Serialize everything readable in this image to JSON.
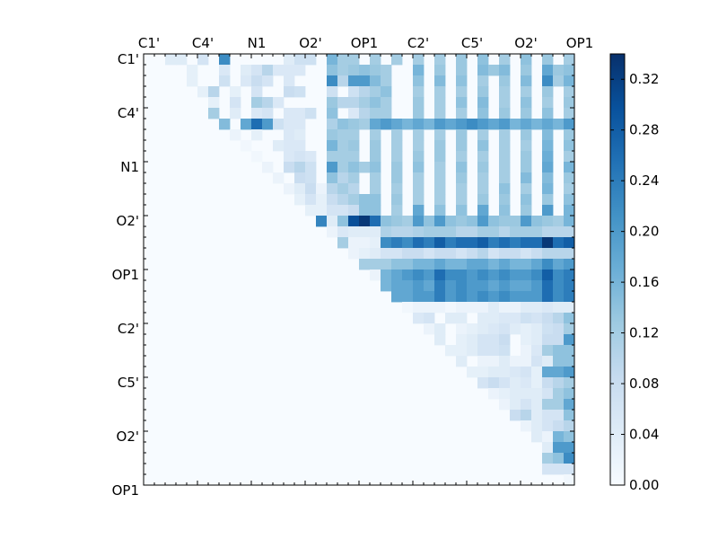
{
  "chart_data": {
    "type": "heatmap",
    "title": "",
    "colormap": "Blues",
    "colors": {
      "low": "#f7fbff",
      "high": "#08306b"
    },
    "n": 40,
    "x_tick_labels": [
      "C1'",
      "C4'",
      "N1",
      "O2'",
      "OP1",
      "C2'",
      "C5'",
      "O2'",
      "OP1"
    ],
    "y_tick_labels": [
      "C1'",
      "C4'",
      "N1",
      "O2'",
      "OP1",
      "C2'",
      "C5'",
      "O2'",
      "OP1"
    ],
    "tick_label_step": 5,
    "matrix_shape": "upper-triangular",
    "colorbar": {
      "min": 0.0,
      "max": 0.34,
      "ticks": [
        0.0,
        0.04,
        0.08,
        0.12,
        0.16,
        0.2,
        0.24,
        0.28,
        0.32
      ],
      "tick_labels": [
        "0.00",
        "0.04",
        "0.08",
        "0.12",
        "0.16",
        "0.20",
        "0.24",
        "0.28",
        "0.32"
      ]
    },
    "rows": [
      {
        "row": 0,
        "values": {
          "2": 0.04,
          "3": 0.04,
          "5": 0.06,
          "7": 0.22,
          "13": 0.04,
          "14": 0.07,
          "15": 0.07,
          "17": 0.16,
          "18": 0.12,
          "19": 0.12,
          "21": 0.12,
          "23": 0.12,
          "25": 0.12,
          "27": 0.12,
          "29": 0.13,
          "31": 0.14,
          "33": 0.12,
          "35": 0.14,
          "37": 0.13,
          "39": 0.12
        }
      },
      {
        "row": 1,
        "values": {
          "4": 0.03,
          "7": 0.05,
          "9": 0.04,
          "10": 0.06,
          "11": 0.1,
          "12": 0.05,
          "13": 0.05,
          "14": 0.05,
          "17": 0.14,
          "18": 0.12,
          "19": 0.13,
          "20": 0.14,
          "21": 0.13,
          "22": 0.12,
          "25": 0.16,
          "27": 0.13,
          "29": 0.13,
          "31": 0.15,
          "32": 0.13,
          "33": 0.15,
          "35": 0.13,
          "37": 0.18,
          "38": 0.13,
          "39": 0.14
        }
      },
      {
        "row": 2,
        "values": {
          "4": 0.03,
          "7": 0.07,
          "9": 0.05,
          "10": 0.08,
          "11": 0.06,
          "13": 0.05,
          "17": 0.22,
          "18": 0.1,
          "19": 0.2,
          "20": 0.2,
          "21": 0.15,
          "22": 0.12,
          "25": 0.14,
          "27": 0.15,
          "29": 0.14,
          "31": 0.12,
          "33": 0.13,
          "35": 0.15,
          "37": 0.22,
          "38": 0.12,
          "39": 0.16
        }
      },
      {
        "row": 3,
        "values": {
          "5": 0.03,
          "6": 0.1,
          "8": 0.03,
          "10": 0.06,
          "13": 0.08,
          "14": 0.07,
          "17": 0.07,
          "19": 0.07,
          "20": 0.1,
          "21": 0.12,
          "22": 0.14,
          "25": 0.12,
          "27": 0.12,
          "29": 0.12,
          "31": 0.13,
          "33": 0.12,
          "35": 0.12,
          "37": 0.13,
          "39": 0.12
        }
      },
      {
        "row": 4,
        "values": {
          "6": 0.03,
          "8": 0.06,
          "10": 0.12,
          "11": 0.1,
          "12": 0.05,
          "17": 0.13,
          "18": 0.1,
          "19": 0.1,
          "20": 0.12,
          "21": 0.14,
          "22": 0.12,
          "25": 0.13,
          "27": 0.12,
          "29": 0.14,
          "31": 0.15,
          "33": 0.12,
          "35": 0.14,
          "37": 0.12,
          "39": 0.13
        }
      },
      {
        "row": 5,
        "values": {
          "6": 0.12,
          "8": 0.04,
          "10": 0.05,
          "11": 0.06,
          "13": 0.05,
          "14": 0.05,
          "15": 0.07,
          "17": 0.14,
          "19": 0.05,
          "20": 0.1,
          "21": 0.12,
          "22": 0.12,
          "25": 0.13,
          "27": 0.12,
          "29": 0.12,
          "31": 0.14,
          "33": 0.13,
          "35": 0.13,
          "37": 0.14,
          "39": 0.12
        }
      },
      {
        "row": 6,
        "values": {
          "7": 0.15,
          "9": 0.18,
          "10": 0.26,
          "11": 0.2,
          "12": 0.07,
          "13": 0.05,
          "14": 0.05,
          "17": 0.11,
          "18": 0.14,
          "19": 0.13,
          "20": 0.12,
          "21": 0.18,
          "22": 0.2,
          "23": 0.18,
          "24": 0.16,
          "25": 0.18,
          "26": 0.16,
          "27": 0.2,
          "28": 0.18,
          "29": 0.2,
          "30": 0.22,
          "31": 0.2,
          "32": 0.18,
          "33": 0.2,
          "34": 0.16,
          "35": 0.18,
          "36": 0.16,
          "37": 0.18,
          "38": 0.16,
          "39": 0.2
        }
      },
      {
        "row": 7,
        "values": {
          "8": 0.02,
          "10": 0.03,
          "13": 0.05,
          "14": 0.04,
          "17": 0.13,
          "18": 0.12,
          "19": 0.12,
          "21": 0.12,
          "23": 0.12,
          "25": 0.12,
          "27": 0.12,
          "29": 0.13,
          "31": 0.12,
          "33": 0.12,
          "35": 0.13,
          "37": 0.15,
          "39": 0.13
        }
      },
      {
        "row": 8,
        "values": {
          "9": 0.01,
          "12": 0.04,
          "13": 0.05,
          "14": 0.05,
          "17": 0.16,
          "18": 0.12,
          "19": 0.13,
          "21": 0.13,
          "23": 0.12,
          "25": 0.12,
          "27": 0.13,
          "29": 0.13,
          "31": 0.14,
          "33": 0.12,
          "35": 0.12,
          "37": 0.16,
          "39": 0.14
        }
      },
      {
        "row": 9,
        "values": {
          "10": 0.01,
          "13": 0.05,
          "14": 0.06,
          "15": 0.05,
          "17": 0.12,
          "18": 0.12,
          "19": 0.12,
          "21": 0.13,
          "23": 0.12,
          "25": 0.13,
          "27": 0.13,
          "29": 0.12,
          "31": 0.12,
          "33": 0.12,
          "35": 0.13,
          "37": 0.17,
          "39": 0.12
        }
      },
      {
        "row": 10,
        "values": {
          "11": 0.02,
          "13": 0.08,
          "14": 0.1,
          "15": 0.07,
          "17": 0.2,
          "18": 0.12,
          "19": 0.14,
          "20": 0.12,
          "21": 0.14,
          "23": 0.13,
          "25": 0.14,
          "27": 0.12,
          "29": 0.14,
          "31": 0.13,
          "33": 0.12,
          "35": 0.13,
          "37": 0.18,
          "39": 0.16
        }
      },
      {
        "row": 11,
        "values": {
          "12": 0.02,
          "14": 0.08,
          "15": 0.07,
          "17": 0.14,
          "18": 0.1,
          "19": 0.12,
          "21": 0.12,
          "23": 0.13,
          "25": 0.12,
          "27": 0.12,
          "29": 0.13,
          "31": 0.12,
          "33": 0.12,
          "35": 0.15,
          "37": 0.15,
          "39": 0.13
        }
      },
      {
        "row": 12,
        "values": {
          "13": 0.02,
          "14": 0.04,
          "15": 0.08,
          "16": 0.02,
          "17": 0.1,
          "18": 0.12,
          "19": 0.1,
          "21": 0.12,
          "23": 0.12,
          "25": 0.12,
          "27": 0.12,
          "29": 0.12,
          "31": 0.12,
          "33": 0.14,
          "35": 0.12,
          "37": 0.16,
          "39": 0.12
        }
      },
      {
        "row": 13,
        "values": {
          "14": 0.03,
          "15": 0.06,
          "16": 0.03,
          "17": 0.08,
          "18": 0.1,
          "19": 0.12,
          "20": 0.14,
          "21": 0.14,
          "23": 0.13,
          "25": 0.12,
          "27": 0.12,
          "29": 0.12,
          "31": 0.13,
          "33": 0.13,
          "35": 0.14,
          "37": 0.13,
          "39": 0.14
        }
      },
      {
        "row": 14,
        "values": {
          "15": 0.03,
          "16": 0.03,
          "17": 0.06,
          "18": 0.06,
          "19": 0.08,
          "20": 0.14,
          "21": 0.14,
          "23": 0.12,
          "25": 0.18,
          "27": 0.14,
          "29": 0.14,
          "31": 0.18,
          "33": 0.14,
          "35": 0.13,
          "37": 0.2,
          "39": 0.16
        }
      },
      {
        "row": 15,
        "values": {
          "16": 0.23,
          "17": 0.04,
          "18": 0.14,
          "19": 0.3,
          "20": 0.33,
          "21": 0.26,
          "22": 0.14,
          "23": 0.13,
          "24": 0.12,
          "25": 0.2,
          "26": 0.14,
          "27": 0.2,
          "28": 0.14,
          "29": 0.13,
          "30": 0.14,
          "31": 0.2,
          "32": 0.14,
          "33": 0.13,
          "34": 0.13,
          "35": 0.2,
          "36": 0.14,
          "37": 0.13,
          "38": 0.12,
          "39": 0.16
        }
      },
      {
        "row": 16,
        "values": {
          "17": 0.02,
          "18": 0.05,
          "19": 0.04,
          "20": 0.04,
          "21": 0.04,
          "22": 0.11,
          "23": 0.1,
          "24": 0.1,
          "25": 0.11,
          "26": 0.12,
          "27": 0.12,
          "28": 0.12,
          "29": 0.1,
          "30": 0.1,
          "31": 0.12,
          "32": 0.12,
          "33": 0.1,
          "34": 0.12,
          "35": 0.12,
          "36": 0.12,
          "37": 0.1,
          "38": 0.1,
          "39": 0.1
        }
      },
      {
        "row": 17,
        "values": {
          "18": 0.12,
          "19": 0.02,
          "20": 0.02,
          "21": 0.03,
          "22": 0.22,
          "23": 0.24,
          "24": 0.22,
          "25": 0.26,
          "26": 0.24,
          "27": 0.28,
          "28": 0.24,
          "29": 0.26,
          "30": 0.26,
          "31": 0.28,
          "32": 0.24,
          "33": 0.26,
          "34": 0.24,
          "35": 0.26,
          "36": 0.26,
          "37": 0.33,
          "38": 0.26,
          "39": 0.28
        }
      },
      {
        "row": 18,
        "values": {
          "19": 0.02,
          "20": 0.03,
          "21": 0.04,
          "22": 0.06,
          "23": 0.06,
          "24": 0.08,
          "25": 0.08,
          "26": 0.06,
          "27": 0.08,
          "28": 0.08,
          "29": 0.06,
          "30": 0.08,
          "31": 0.1,
          "32": 0.06,
          "33": 0.08,
          "34": 0.08,
          "35": 0.06,
          "36": 0.08,
          "37": 0.1,
          "38": 0.1,
          "39": 0.1
        }
      },
      {
        "row": 19,
        "values": {
          "20": 0.12,
          "21": 0.12,
          "22": 0.12,
          "23": 0.14,
          "24": 0.14,
          "25": 0.16,
          "26": 0.16,
          "27": 0.18,
          "28": 0.16,
          "29": 0.16,
          "30": 0.18,
          "31": 0.18,
          "32": 0.16,
          "33": 0.18,
          "34": 0.16,
          "35": 0.16,
          "36": 0.18,
          "37": 0.22,
          "38": 0.18,
          "39": 0.2
        }
      },
      {
        "row": 20,
        "values": {
          "21": 0.02,
          "22": 0.16,
          "23": 0.18,
          "24": 0.2,
          "25": 0.22,
          "26": 0.2,
          "27": 0.26,
          "28": 0.22,
          "29": 0.22,
          "30": 0.2,
          "31": 0.22,
          "32": 0.2,
          "33": 0.22,
          "34": 0.2,
          "35": 0.2,
          "36": 0.22,
          "37": 0.28,
          "38": 0.22,
          "39": 0.24
        }
      },
      {
        "row": 21,
        "values": {
          "22": 0.16,
          "23": 0.18,
          "24": 0.18,
          "25": 0.2,
          "26": 0.18,
          "27": 0.24,
          "28": 0.2,
          "29": 0.22,
          "30": 0.2,
          "31": 0.2,
          "32": 0.18,
          "33": 0.2,
          "34": 0.18,
          "35": 0.18,
          "36": 0.2,
          "37": 0.26,
          "38": 0.22,
          "39": 0.24
        }
      },
      {
        "row": 22,
        "values": {
          "23": 0.18,
          "24": 0.18,
          "25": 0.2,
          "26": 0.2,
          "27": 0.24,
          "28": 0.2,
          "29": 0.22,
          "30": 0.2,
          "31": 0.22,
          "32": 0.2,
          "33": 0.22,
          "34": 0.2,
          "35": 0.2,
          "36": 0.2,
          "37": 0.26,
          "38": 0.22,
          "39": 0.24
        }
      },
      {
        "row": 23,
        "values": {
          "24": 0.01,
          "25": 0.02,
          "26": 0.02,
          "27": 0.02,
          "28": 0.01,
          "29": 0.02,
          "30": 0.02,
          "31": 0.02,
          "32": 0.04,
          "33": 0.02,
          "34": 0.02,
          "35": 0.04,
          "36": 0.04,
          "37": 0.05,
          "38": 0.04,
          "39": 0.04
        }
      },
      {
        "row": 24,
        "values": {
          "25": 0.05,
          "26": 0.06,
          "28": 0.04,
          "29": 0.04,
          "31": 0.04,
          "32": 0.04,
          "33": 0.05,
          "34": 0.05,
          "35": 0.07,
          "36": 0.06,
          "37": 0.08,
          "38": 0.1,
          "39": 0.14
        }
      },
      {
        "row": 25,
        "values": {
          "26": 0.02,
          "27": 0.04,
          "29": 0.02,
          "30": 0.03,
          "31": 0.04,
          "32": 0.05,
          "33": 0.06,
          "34": 0.04,
          "35": 0.03,
          "36": 0.04,
          "37": 0.07,
          "38": 0.08,
          "39": 0.12
        }
      },
      {
        "row": 26,
        "values": {
          "27": 0.04,
          "29": 0.03,
          "30": 0.04,
          "31": 0.06,
          "32": 0.06,
          "33": 0.08,
          "35": 0.03,
          "36": 0.04,
          "37": 0.08,
          "38": 0.08,
          "39": 0.2
        }
      },
      {
        "row": 27,
        "values": {
          "28": 0.03,
          "29": 0.03,
          "30": 0.04,
          "31": 0.06,
          "32": 0.06,
          "33": 0.07,
          "35": 0.02,
          "36": 0.05,
          "37": 0.12,
          "38": 0.14,
          "39": 0.14
        }
      },
      {
        "row": 28,
        "values": {
          "29": 0.04,
          "31": 0.02,
          "32": 0.02,
          "33": 0.04,
          "34": 0.02,
          "35": 0.02,
          "36": 0.06,
          "37": 0.04,
          "38": 0.14,
          "39": 0.14
        }
      },
      {
        "row": 29,
        "values": {
          "30": 0.03,
          "31": 0.03,
          "32": 0.04,
          "33": 0.04,
          "34": 0.05,
          "35": 0.06,
          "36": 0.03,
          "37": 0.18,
          "38": 0.18,
          "39": 0.2
        }
      },
      {
        "row": 30,
        "values": {
          "31": 0.06,
          "32": 0.08,
          "33": 0.06,
          "34": 0.04,
          "35": 0.05,
          "36": 0.03,
          "37": 0.08,
          "38": 0.1,
          "39": 0.12
        }
      },
      {
        "row": 31,
        "values": {
          "32": 0.02,
          "33": 0.03,
          "34": 0.04,
          "35": 0.04,
          "36": 0.04,
          "37": 0.06,
          "38": 0.12,
          "39": 0.14
        }
      },
      {
        "row": 32,
        "values": {
          "33": 0.02,
          "34": 0.04,
          "35": 0.06,
          "36": 0.04,
          "37": 0.12,
          "38": 0.12,
          "39": 0.18
        }
      },
      {
        "row": 33,
        "values": {
          "34": 0.08,
          "35": 0.1,
          "36": 0.04,
          "37": 0.06,
          "38": 0.06,
          "39": 0.14
        }
      },
      {
        "row": 34,
        "values": {
          "35": 0.02,
          "36": 0.04,
          "37": 0.06,
          "38": 0.08,
          "39": 0.1
        }
      },
      {
        "row": 35,
        "values": {
          "36": 0.04,
          "37": 0.02,
          "38": 0.16,
          "39": 0.14
        }
      },
      {
        "row": 36,
        "values": {
          "37": 0.04,
          "38": 0.2,
          "39": 0.2
        }
      },
      {
        "row": 37,
        "values": {
          "37": 0.12,
          "38": 0.14,
          "39": 0.22
        }
      },
      {
        "row": 38,
        "values": {
          "37": 0.06,
          "38": 0.06,
          "39": 0.06
        }
      },
      {
        "row": 39,
        "values": {
          "39": 0.01
        }
      }
    ]
  }
}
